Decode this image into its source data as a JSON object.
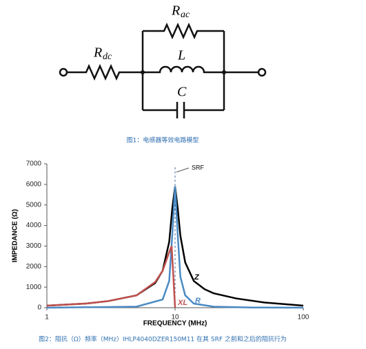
{
  "figure1": {
    "r_dc": {
      "symbol": "R",
      "subscript": "dc"
    },
    "r_ac": {
      "symbol": "R",
      "subscript": "ac"
    },
    "inductor": "L",
    "capacitor": "C",
    "caption": "图1：电感器等效电路模型"
  },
  "chart_data": {
    "type": "line",
    "xlabel": "FREQUENCY (MHz)",
    "ylabel": "IMPEDANCE (Ω)",
    "log_x": true,
    "xlim": [
      1,
      100
    ],
    "ylim": [
      0,
      7000
    ],
    "xticks": [
      1,
      10,
      100
    ],
    "yticks": [
      0,
      1000,
      2000,
      3000,
      4000,
      5000,
      6000,
      7000
    ],
    "srf": {
      "label": "SRF",
      "x": 10
    },
    "series": [
      {
        "name": "Z",
        "color": "#000000",
        "x": [
          1,
          2,
          3,
          5,
          7,
          8,
          9,
          9.5,
          10,
          10.5,
          11,
          12,
          14,
          17,
          20,
          30,
          50,
          100
        ],
        "values": [
          100,
          200,
          320,
          600,
          1200,
          1800,
          3200,
          4800,
          5900,
          4800,
          3500,
          2200,
          1300,
          900,
          700,
          450,
          250,
          100
        ]
      },
      {
        "name": "R",
        "color": "#4a8ac4",
        "x": [
          1,
          5,
          8,
          9,
          9.5,
          10,
          10.5,
          11,
          12,
          14,
          20,
          40,
          100
        ],
        "values": [
          0,
          50,
          400,
          1300,
          3500,
          5900,
          3500,
          1500,
          600,
          200,
          50,
          10,
          0
        ]
      },
      {
        "name": "XL",
        "color": "#c0504d",
        "x": [
          1,
          2,
          3,
          5,
          7,
          8,
          9,
          9.4,
          9.7,
          10
        ],
        "values": [
          100,
          200,
          320,
          600,
          1250,
          1800,
          2700,
          3000,
          1500,
          0
        ]
      }
    ]
  },
  "figure2_caption": "图2：阻抗（Ω）频率（MHz）IHLP4040DZER150M11 在其 SRF 之前和之后的阻抗行为"
}
